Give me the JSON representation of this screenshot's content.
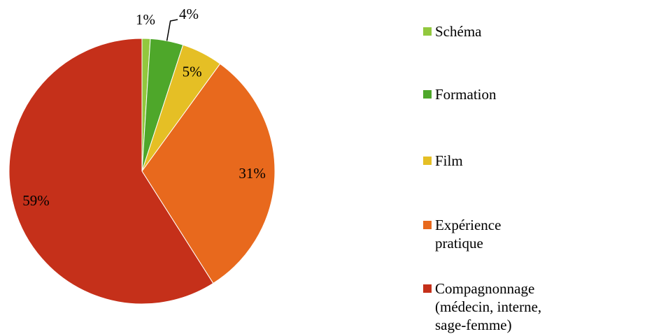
{
  "chart_data": {
    "type": "pie",
    "categories": [
      "Schéma",
      "Formation",
      "Film",
      "Expérience pratique",
      "Compagnonnage (médecin, interne, sage-femme)"
    ],
    "values": [
      1,
      4,
      5,
      31,
      59
    ],
    "value_labels": [
      "1%",
      "4%",
      "5%",
      "31%",
      "59%"
    ],
    "colors": [
      "#92c83e",
      "#4ea72a",
      "#e5bf25",
      "#e8691d",
      "#c5301a"
    ],
    "legend": "right"
  }
}
